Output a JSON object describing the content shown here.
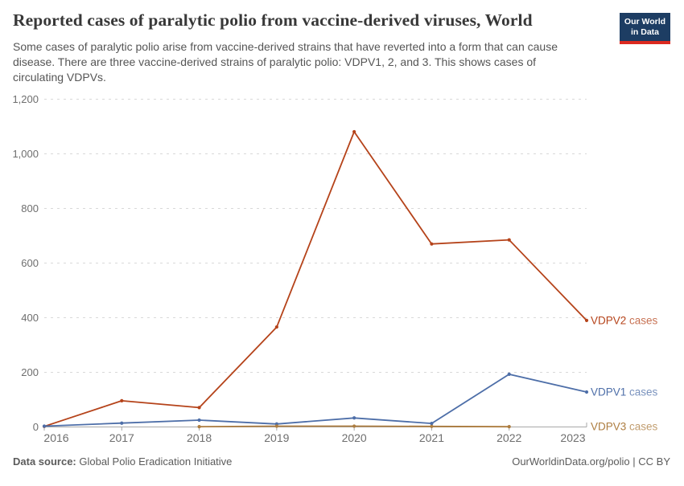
{
  "header": {
    "title": "Reported cases of paralytic polio from vaccine-derived viruses, World",
    "subtitle": "Some cases of paralytic polio arise from vaccine-derived strains that have reverted into a form that can cause disease. There are three vaccine-derived strains of paralytic polio: VDPV1, 2, and 3. This shows cases of circulating VDPVs."
  },
  "logo": {
    "line1": "Our World",
    "line2": "in Data",
    "bg_color": "#1d3d63",
    "stripe_color": "#dc2a20"
  },
  "chart_data": {
    "type": "line",
    "title": "Reported cases of paralytic polio from vaccine-derived viruses, World",
    "x": [
      "2016",
      "2017",
      "2018",
      "2019",
      "2020",
      "2021",
      "2022",
      "2023"
    ],
    "xlabel": "",
    "ylabel": "",
    "ylim": [
      0,
      1200
    ],
    "grid": "horizontal-dashed",
    "legend": "end-of-line-labels",
    "yticks": [
      {
        "v": 0,
        "label": "0"
      },
      {
        "v": 200,
        "label": "200"
      },
      {
        "v": 400,
        "label": "400"
      },
      {
        "v": 600,
        "label": "600"
      },
      {
        "v": 800,
        "label": "800"
      },
      {
        "v": 1000,
        "label": "1,000"
      },
      {
        "v": 1200,
        "label": "1,200"
      }
    ],
    "series": [
      {
        "name": "VDPV2 cases",
        "color": "#b5431a",
        "values": [
          2,
          96,
          71,
          366,
          1081,
          670,
          685,
          390
        ]
      },
      {
        "name": "VDPV1 cases",
        "color": "#4d6ea8",
        "values": [
          3,
          14,
          25,
          11,
          33,
          13,
          193,
          128
        ]
      },
      {
        "name": "VDPV3 cases",
        "color": "#ad7d40",
        "values": [
          null,
          null,
          1,
          3,
          3,
          2,
          1,
          null
        ]
      }
    ],
    "axis_color": "#a7a7a7",
    "grid_color": "#d9d9d9",
    "tick_label_color": "#6e6e6e"
  },
  "footer": {
    "source_label": "Data source:",
    "source_value": " Global Polio Eradication Initiative",
    "credit": "OurWorldinData.org/polio | CC BY"
  }
}
